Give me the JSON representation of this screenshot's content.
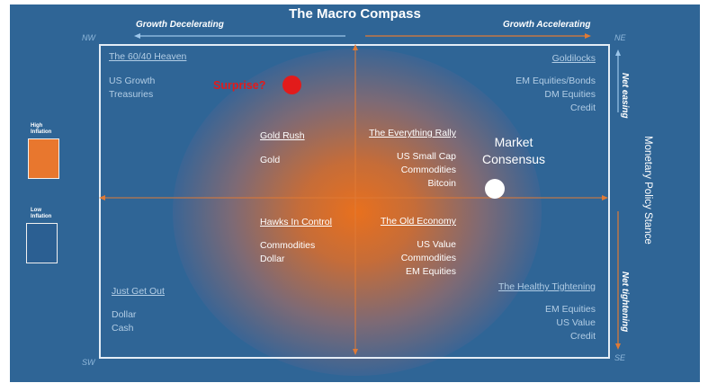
{
  "title": "The Macro Compass",
  "axis": {
    "left_label": "Growth Decelerating",
    "right_label": "Growth Accelerating",
    "side_title": "Monetary Policy Stance",
    "side_top": "Net easing",
    "side_bottom": "Net tightening"
  },
  "compass": {
    "nw": "NW",
    "ne": "NE",
    "sw": "SW",
    "se": "SE"
  },
  "legend": {
    "high": [
      "High",
      "Inflation"
    ],
    "low": [
      "Low",
      "Inflation"
    ]
  },
  "colors": {
    "background": "#2f6596",
    "high_inflation": "#e8772e",
    "low_inflation": "#2b5f92",
    "surprise": "#e21b1b",
    "arrow": "#e07a35"
  },
  "quadrants": {
    "nw_outer": {
      "title": "The 60/40 Heaven",
      "items": [
        "US Growth",
        "Treasuries"
      ]
    },
    "ne_outer": {
      "title": "Goldilocks",
      "items": [
        "EM Equities/Bonds",
        "DM Equities",
        "Credit"
      ]
    },
    "sw_outer": {
      "title": "Just Get Out",
      "items": [
        "Dollar",
        "Cash"
      ]
    },
    "se_outer": {
      "title": "The Healthy Tightening",
      "items": [
        "EM Equities",
        "US Value",
        "Credit"
      ]
    },
    "nw_inner": {
      "title": "Gold Rush",
      "items": [
        "Gold"
      ]
    },
    "ne_inner": {
      "title": "The Everything Rally",
      "items": [
        "US Small Cap",
        "Commodities",
        "Bitcoin"
      ]
    },
    "sw_inner": {
      "title": "Hawks In Control",
      "items": [
        "Commodities",
        "Dollar"
      ]
    },
    "se_inner": {
      "title": "The Old Economy",
      "items": [
        "US Value",
        "Commodities",
        "EM Equities"
      ]
    }
  },
  "markers": {
    "surprise": "Surprise?",
    "consensus": [
      "Market",
      "Consensus"
    ]
  }
}
